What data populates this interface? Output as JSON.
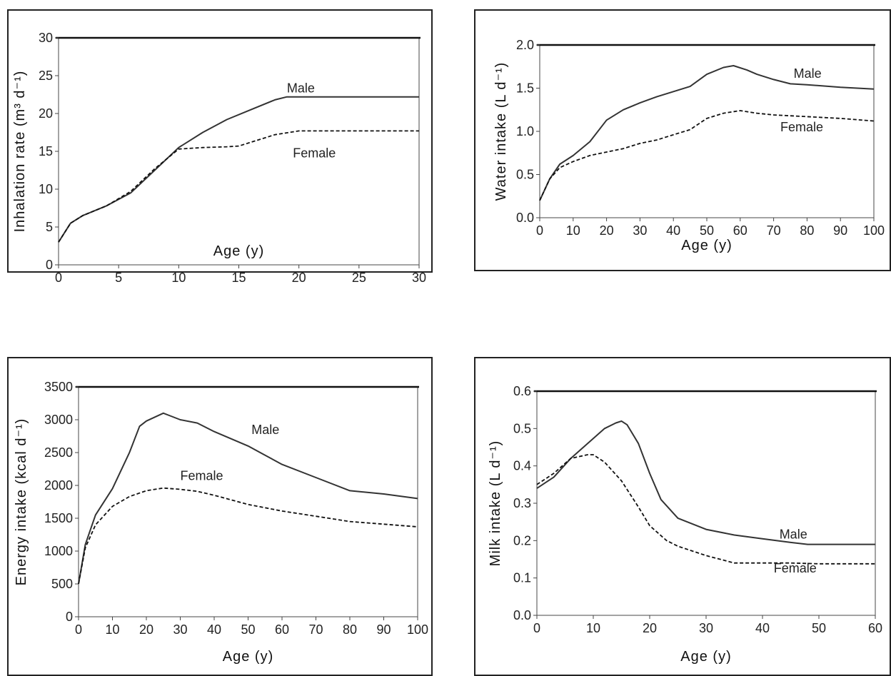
{
  "chart_data": [
    {
      "type": "line",
      "ylabel": "Inhalation rate (m³ d⁻¹)",
      "xlabel": "Age (y)",
      "xlim": [
        0,
        30
      ],
      "ylim": [
        0,
        30
      ],
      "xticks": [
        0,
        5,
        10,
        15,
        20,
        25,
        30
      ],
      "yticks": [
        0,
        5,
        10,
        15,
        20,
        25,
        30
      ],
      "series": [
        {
          "name": "Male",
          "style": "solid",
          "x": [
            0,
            1,
            2,
            4,
            6,
            8,
            10,
            12,
            14,
            16,
            18,
            19,
            20,
            25,
            30
          ],
          "y": [
            3,
            5.5,
            6.5,
            7.8,
            9.5,
            12.5,
            15.5,
            17.5,
            19.2,
            20.5,
            21.8,
            22.2,
            22.2,
            22.2,
            22.2
          ]
        },
        {
          "name": "Female",
          "style": "dashed",
          "x": [
            0,
            1,
            2,
            4,
            6,
            8,
            10,
            12,
            14,
            15,
            16,
            18,
            20,
            25,
            30
          ],
          "y": [
            3,
            5.5,
            6.5,
            7.8,
            9.7,
            12.7,
            15.3,
            15.5,
            15.6,
            15.7,
            16.2,
            17.2,
            17.7,
            17.7,
            17.7
          ]
        }
      ]
    },
    {
      "type": "line",
      "ylabel": "Water intake (L d⁻¹)",
      "xlabel": "Age (y)",
      "xlim": [
        0,
        100
      ],
      "ylim": [
        0,
        2.0
      ],
      "xticks": [
        0,
        10,
        20,
        30,
        40,
        50,
        60,
        70,
        80,
        90,
        100
      ],
      "yticks": [
        "0.0",
        "0.5",
        "1.0",
        "1.5",
        "2.0"
      ],
      "series": [
        {
          "name": "Male",
          "style": "solid",
          "x": [
            0,
            3,
            6,
            10,
            15,
            20,
            25,
            30,
            35,
            40,
            45,
            50,
            55,
            58,
            62,
            65,
            70,
            75,
            80,
            90,
            100
          ],
          "y": [
            0.2,
            0.45,
            0.62,
            0.72,
            0.88,
            1.13,
            1.25,
            1.33,
            1.4,
            1.46,
            1.52,
            1.66,
            1.74,
            1.76,
            1.71,
            1.66,
            1.6,
            1.55,
            1.54,
            1.51,
            1.49
          ]
        },
        {
          "name": "Female",
          "style": "dashed",
          "x": [
            0,
            3,
            6,
            10,
            15,
            20,
            25,
            30,
            35,
            40,
            45,
            50,
            55,
            60,
            65,
            70,
            80,
            90,
            100
          ],
          "y": [
            0.2,
            0.45,
            0.58,
            0.65,
            0.72,
            0.76,
            0.8,
            0.86,
            0.9,
            0.96,
            1.02,
            1.15,
            1.21,
            1.24,
            1.21,
            1.19,
            1.17,
            1.15,
            1.12
          ]
        }
      ]
    },
    {
      "type": "line",
      "ylabel": "Energy intake (kcal d⁻¹)",
      "xlabel": "Age (y)",
      "xlim": [
        0,
        100
      ],
      "ylim": [
        0,
        3500
      ],
      "xticks": [
        0,
        10,
        20,
        30,
        40,
        50,
        60,
        70,
        80,
        90,
        100
      ],
      "yticks": [
        0,
        500,
        1000,
        1500,
        2000,
        2500,
        3000,
        3500
      ],
      "series": [
        {
          "name": "Male",
          "style": "solid",
          "x": [
            0,
            2,
            5,
            10,
            15,
            18,
            20,
            25,
            27,
            30,
            35,
            40,
            50,
            60,
            70,
            80,
            90,
            100
          ],
          "y": [
            500,
            1100,
            1550,
            1950,
            2500,
            2900,
            2980,
            3100,
            3060,
            3000,
            2950,
            2820,
            2600,
            2320,
            2120,
            1920,
            1870,
            1800
          ]
        },
        {
          "name": "Female",
          "style": "dashed",
          "x": [
            0,
            2,
            5,
            10,
            15,
            20,
            25,
            30,
            35,
            40,
            50,
            60,
            70,
            80,
            90,
            100
          ],
          "y": [
            500,
            1050,
            1400,
            1680,
            1830,
            1920,
            1960,
            1940,
            1910,
            1850,
            1710,
            1610,
            1530,
            1450,
            1410,
            1370
          ]
        }
      ]
    },
    {
      "type": "line",
      "ylabel": "Milk intake (L d⁻¹)",
      "xlabel": "Age (y)",
      "xlim": [
        0,
        60
      ],
      "ylim": [
        0,
        0.6
      ],
      "xticks": [
        0,
        10,
        20,
        30,
        40,
        50,
        60
      ],
      "yticks": [
        "0.0",
        "0.1",
        "0.2",
        "0.3",
        "0.4",
        "0.5",
        "0.6"
      ],
      "series": [
        {
          "name": "Male",
          "style": "solid",
          "x": [
            0,
            3,
            6,
            9,
            12,
            14,
            15,
            16,
            18,
            20,
            22,
            25,
            30,
            35,
            40,
            45,
            48,
            50,
            55,
            60
          ],
          "y": [
            0.34,
            0.37,
            0.42,
            0.46,
            0.5,
            0.515,
            0.52,
            0.51,
            0.46,
            0.38,
            0.31,
            0.26,
            0.23,
            0.215,
            0.205,
            0.195,
            0.19,
            0.19,
            0.19,
            0.19
          ]
        },
        {
          "name": "Female",
          "style": "dashed",
          "x": [
            0,
            3,
            6,
            9,
            10,
            12,
            15,
            18,
            20,
            23,
            25,
            30,
            35,
            40,
            45,
            50,
            60
          ],
          "y": [
            0.35,
            0.38,
            0.42,
            0.43,
            0.43,
            0.41,
            0.36,
            0.29,
            0.24,
            0.2,
            0.185,
            0.16,
            0.14,
            0.14,
            0.14,
            0.138,
            0.138
          ]
        }
      ]
    }
  ]
}
